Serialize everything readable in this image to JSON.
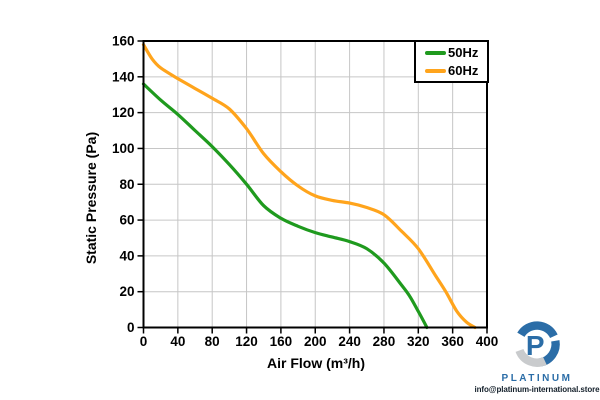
{
  "chart_data": {
    "type": "line",
    "xlabel": "Air Flow (m³/h)",
    "ylabel": "Static Pressure (Pa)",
    "xlim": [
      0,
      400
    ],
    "ylim": [
      0,
      160
    ],
    "xticks": [
      0,
      40,
      80,
      120,
      160,
      200,
      240,
      280,
      320,
      360,
      400
    ],
    "yticks": [
      0,
      20,
      40,
      60,
      80,
      100,
      120,
      140,
      160
    ],
    "grid": true,
    "legend_position": "top-right-inside",
    "gridline_color": "#c6c6c6",
    "axis_color": "#000000",
    "series": [
      {
        "name": "50Hz",
        "color": "#1f9a1e",
        "points": [
          [
            0,
            136
          ],
          [
            20,
            127
          ],
          [
            40,
            119
          ],
          [
            60,
            110
          ],
          [
            80,
            101
          ],
          [
            100,
            91
          ],
          [
            120,
            80
          ],
          [
            140,
            68
          ],
          [
            160,
            61
          ],
          [
            180,
            56.5
          ],
          [
            200,
            53
          ],
          [
            220,
            50.5
          ],
          [
            240,
            48
          ],
          [
            260,
            44
          ],
          [
            280,
            36
          ],
          [
            300,
            24
          ],
          [
            310,
            17.5
          ],
          [
            320,
            9
          ],
          [
            330,
            0
          ]
        ]
      },
      {
        "name": "60Hz",
        "color": "#ffa41c",
        "points": [
          [
            0,
            158
          ],
          [
            10,
            150
          ],
          [
            20,
            145
          ],
          [
            40,
            139
          ],
          [
            60,
            133.5
          ],
          [
            80,
            128
          ],
          [
            100,
            122
          ],
          [
            120,
            111
          ],
          [
            140,
            97
          ],
          [
            160,
            87
          ],
          [
            180,
            79
          ],
          [
            200,
            73.5
          ],
          [
            220,
            71
          ],
          [
            240,
            69.5
          ],
          [
            260,
            67
          ],
          [
            280,
            63
          ],
          [
            300,
            54
          ],
          [
            320,
            44
          ],
          [
            340,
            29
          ],
          [
            352,
            20
          ],
          [
            365,
            9
          ],
          [
            376,
            3
          ],
          [
            386,
            0
          ]
        ]
      }
    ]
  },
  "watermark": {
    "brand": "PLATINUM",
    "email": "info@platinum-international.store",
    "logo_letter": "P",
    "brand_color": "#2b6da7",
    "swoosh_gray": "#c9cbcd"
  }
}
